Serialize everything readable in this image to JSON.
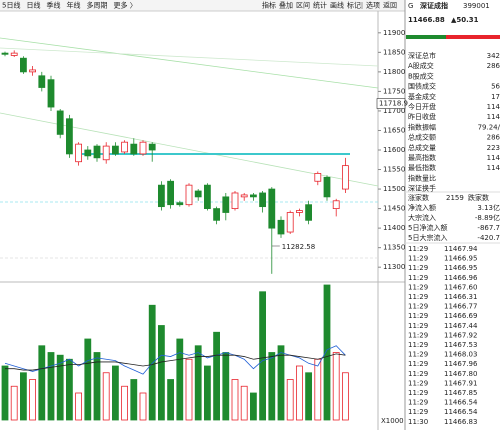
{
  "toolbar": {
    "left": [
      "5日线",
      "日线",
      "季线",
      "年线",
      "多周期",
      "更多 〉"
    ],
    "right": [
      "指标",
      "叠加",
      "区间",
      "统计",
      "画线",
      "标记",
      "选项",
      "返回"
    ]
  },
  "chart_data": {
    "type": "candlestick",
    "ylim": [
      11280,
      11920
    ],
    "yticks": [
      11300,
      11350,
      11400,
      11450,
      11500,
      11550,
      11600,
      11650,
      11700,
      11750,
      11800,
      11850,
      11900
    ],
    "cursor_price": 11718.9,
    "low_label": "11282.58",
    "up_color": "#e8242c",
    "down_color": "#1e8a2e",
    "candles": [
      {
        "open": 11848,
        "high": 11852,
        "low": 11840,
        "close": 11845
      },
      {
        "open": 11842,
        "high": 11855,
        "low": 11838,
        "close": 11848
      },
      {
        "open": 11835,
        "high": 11840,
        "low": 11795,
        "close": 11800
      },
      {
        "open": 11800,
        "high": 11815,
        "low": 11790,
        "close": 11805
      },
      {
        "open": 11790,
        "high": 11800,
        "low": 11750,
        "close": 11760
      },
      {
        "open": 11780,
        "high": 11790,
        "low": 11700,
        "close": 11710
      },
      {
        "open": 11700,
        "high": 11705,
        "low": 11630,
        "close": 11640
      },
      {
        "open": 11680,
        "high": 11690,
        "low": 11580,
        "close": 11590
      },
      {
        "open": 11570,
        "high": 11620,
        "low": 11560,
        "close": 11615
      },
      {
        "open": 11600,
        "high": 11610,
        "low": 11575,
        "close": 11585
      },
      {
        "open": 11610,
        "high": 11615,
        "low": 11570,
        "close": 11580
      },
      {
        "open": 11575,
        "high": 11620,
        "low": 11565,
        "close": 11610
      },
      {
        "open": 11610,
        "high": 11620,
        "low": 11585,
        "close": 11590
      },
      {
        "open": 11595,
        "high": 11625,
        "low": 11590,
        "close": 11620
      },
      {
        "open": 11615,
        "high": 11630,
        "low": 11585,
        "close": 11590
      },
      {
        "open": 11590,
        "high": 11625,
        "low": 11585,
        "close": 11620
      },
      {
        "open": 11615,
        "high": 11620,
        "low": 11570,
        "close": 11600
      },
      {
        "open": 11510,
        "high": 11520,
        "low": 11445,
        "close": 11455
      },
      {
        "open": 11520,
        "high": 11525,
        "low": 11450,
        "close": 11460
      },
      {
        "open": 11465,
        "high": 11470,
        "low": 11455,
        "close": 11460
      },
      {
        "open": 11460,
        "high": 11515,
        "low": 11455,
        "close": 11510
      },
      {
        "open": 11495,
        "high": 11500,
        "low": 11470,
        "close": 11480
      },
      {
        "open": 11510,
        "high": 11515,
        "low": 11445,
        "close": 11450
      },
      {
        "open": 11450,
        "high": 11455,
        "low": 11410,
        "close": 11420
      },
      {
        "open": 11480,
        "high": 11490,
        "low": 11420,
        "close": 11440
      },
      {
        "open": 11450,
        "high": 11495,
        "low": 11445,
        "close": 11490
      },
      {
        "open": 11480,
        "high": 11490,
        "low": 11470,
        "close": 11485
      },
      {
        "open": 11485,
        "high": 11490,
        "low": 11470,
        "close": 11480
      },
      {
        "open": 11490,
        "high": 11495,
        "low": 11440,
        "close": 11455
      },
      {
        "open": 11500,
        "high": 11505,
        "low": 11283,
        "close": 11400
      },
      {
        "open": 11420,
        "high": 11430,
        "low": 11375,
        "close": 11385
      },
      {
        "open": 11390,
        "high": 11445,
        "low": 11385,
        "close": 11440
      },
      {
        "open": 11440,
        "high": 11450,
        "low": 11430,
        "close": 11445
      },
      {
        "open": 11460,
        "high": 11470,
        "low": 11410,
        "close": 11420
      },
      {
        "open": 11520,
        "high": 11545,
        "low": 11510,
        "close": 11540
      },
      {
        "open": 11530,
        "high": 11535,
        "low": 11470,
        "close": 11480
      },
      {
        "open": 11450,
        "high": 11475,
        "low": 11430,
        "close": 11470
      },
      {
        "open": 11500,
        "high": 11580,
        "low": 11490,
        "close": 11560
      }
    ],
    "volume": {
      "unit_label": "X1000",
      "vlim": [
        0,
        100
      ],
      "values": [
        40,
        25,
        35,
        30,
        55,
        50,
        48,
        45,
        20,
        60,
        50,
        35,
        40,
        25,
        30,
        20,
        85,
        70,
        30,
        60,
        45,
        55,
        40,
        65,
        50,
        30,
        25,
        20,
        95,
        50,
        55,
        30,
        40,
        35,
        45,
        100,
        50,
        35
      ],
      "lines": [
        {
          "color": "#1f5fd6",
          "values": [
            42,
            40,
            38,
            36,
            38,
            40,
            42,
            45,
            40,
            44,
            46,
            45,
            44,
            40,
            37,
            34,
            42,
            48,
            47,
            50,
            48,
            50,
            46,
            48,
            50,
            48,
            45,
            38,
            44,
            46,
            50,
            48,
            46,
            42,
            40,
            52,
            55,
            48
          ]
        },
        {
          "color": "#222222",
          "values": [
            38,
            38,
            37,
            37,
            38,
            39,
            40,
            41,
            41,
            42,
            43,
            43,
            43,
            42,
            41,
            40,
            41,
            43,
            44,
            45,
            46,
            47,
            47,
            48,
            48,
            48,
            47,
            45,
            46,
            47,
            48,
            48,
            47,
            46,
            45,
            47,
            49,
            48
          ]
        }
      ]
    }
  },
  "quote": {
    "mark": "G",
    "name": "深证成指",
    "code": "399001",
    "price": "11466.88",
    "change": "▲50.31",
    "rows": [
      {
        "label": "深证总市",
        "value": "342"
      },
      {
        "label": "A股成交",
        "value": "286"
      },
      {
        "label": "B股成交",
        "value": ""
      },
      {
        "label": "国债成交",
        "value": "56"
      },
      {
        "label": "基金成交",
        "value": "17"
      },
      {
        "label": "今日开盘",
        "value": "114"
      },
      {
        "label": "昨日收盘",
        "value": "114"
      },
      {
        "label": "指数振幅",
        "value": "79.24/"
      },
      {
        "label": "总成交额",
        "value": "286"
      },
      {
        "label": "总成交量",
        "value": "223"
      },
      {
        "label": "最高指数",
        "value": "114"
      },
      {
        "label": "最低指数",
        "value": "114"
      },
      {
        "label": "指数量比",
        "value": ""
      },
      {
        "label": "深证换手",
        "value": ""
      }
    ],
    "breadth": {
      "up_label": "涨家数",
      "up": "2159",
      "down_label": "跌家数"
    },
    "flows": [
      {
        "label": "净流入额",
        "value": "3.13亿",
        "color": "#e8242c"
      },
      {
        "label": "大宗流入",
        "value": "-8.89亿",
        "color": "#1e8a2e"
      },
      {
        "label": "5日净流入额",
        "value": "-867.7",
        "color": "#1e8a2e"
      },
      {
        "label": "5日大宗流入",
        "value": "-420.7",
        "color": "#1e8a2e"
      }
    ],
    "ticks": [
      {
        "time": "11:29",
        "price": "11467.94",
        "color": "#1e8a2e"
      },
      {
        "time": "11:29",
        "price": "11466.95",
        "color": "#e8242c"
      },
      {
        "time": "11:29",
        "price": "11466.95",
        "color": "#e8242c"
      },
      {
        "time": "11:29",
        "price": "11466.96",
        "color": "#e8242c"
      },
      {
        "time": "11:29",
        "price": "11467.60",
        "color": "#e8242c"
      },
      {
        "time": "11:29",
        "price": "11466.31",
        "color": "#e8242c"
      },
      {
        "time": "11:29",
        "price": "11466.77",
        "color": "#e8242c"
      },
      {
        "time": "11:29",
        "price": "11466.69",
        "color": "#e8242c"
      },
      {
        "time": "11:29",
        "price": "11467.44",
        "color": "#e8242c"
      },
      {
        "time": "11:29",
        "price": "11467.92",
        "color": "#e8242c"
      },
      {
        "time": "11:29",
        "price": "11467.53",
        "color": "#e8242c"
      },
      {
        "time": "11:29",
        "price": "11468.03",
        "color": "#e8242c"
      },
      {
        "time": "11:29",
        "price": "11467.96",
        "color": "#e8242c"
      },
      {
        "time": "11:29",
        "price": "11467.80",
        "color": "#e8242c"
      },
      {
        "time": "11:29",
        "price": "11467.91",
        "color": "#e8242c"
      },
      {
        "time": "11:29",
        "price": "11467.85",
        "color": "#e8242c"
      },
      {
        "time": "11:29",
        "price": "11466.54",
        "color": "#e8242c"
      },
      {
        "time": "11:29",
        "price": "11466.54",
        "color": "#e8242c"
      },
      {
        "time": "11:30",
        "price": "11466.83",
        "color": "#e8242c"
      }
    ]
  }
}
